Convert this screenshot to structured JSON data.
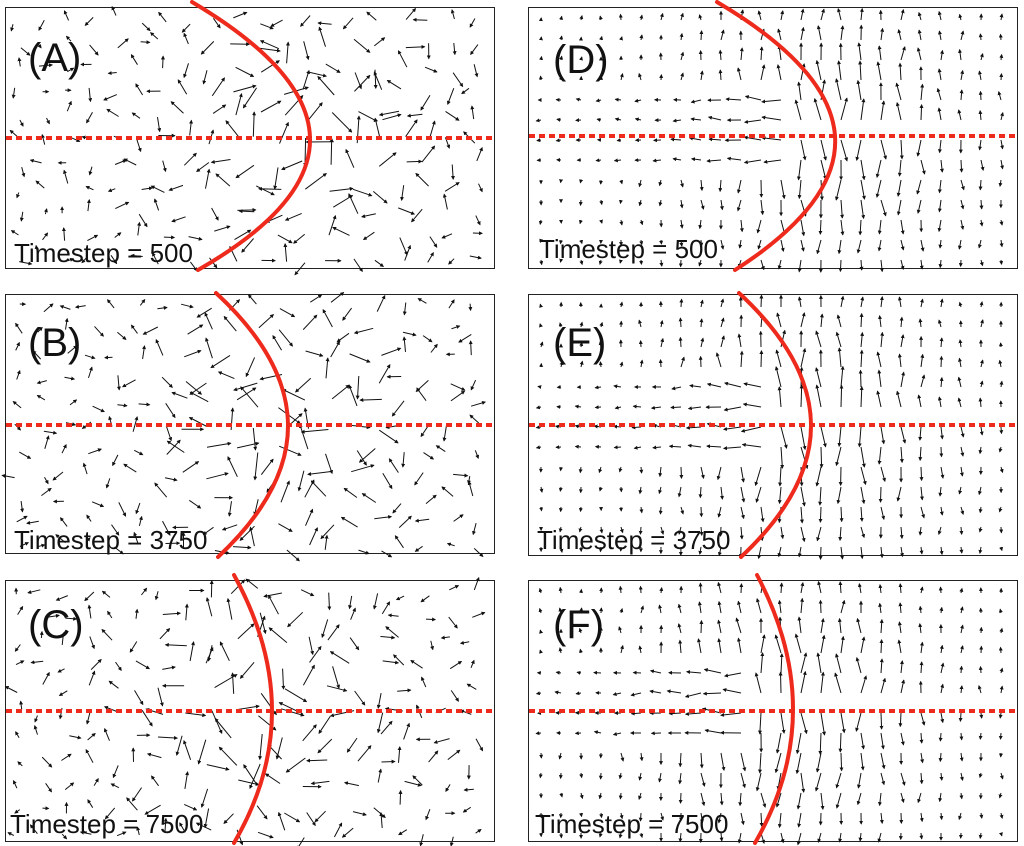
{
  "panels": [
    {
      "id": "A",
      "label": "(A)",
      "timestep": "Timestep = 500"
    },
    {
      "id": "B",
      "label": "(B)",
      "timestep": "Timestep = 3750"
    },
    {
      "id": "C",
      "label": "(C)",
      "timestep": "Timestep = 7500"
    },
    {
      "id": "D",
      "label": "(D)",
      "timestep": "Timestep = 500"
    },
    {
      "id": "E",
      "label": "(E)",
      "timestep": "Timestep = 3750"
    },
    {
      "id": "F",
      "label": "(F)",
      "timestep": "Timestep = 7500"
    }
  ],
  "colors": {
    "interface": "#ee2a1c",
    "midline": "#ee2a1c",
    "arrows": "#111111",
    "border": "#222222"
  }
}
